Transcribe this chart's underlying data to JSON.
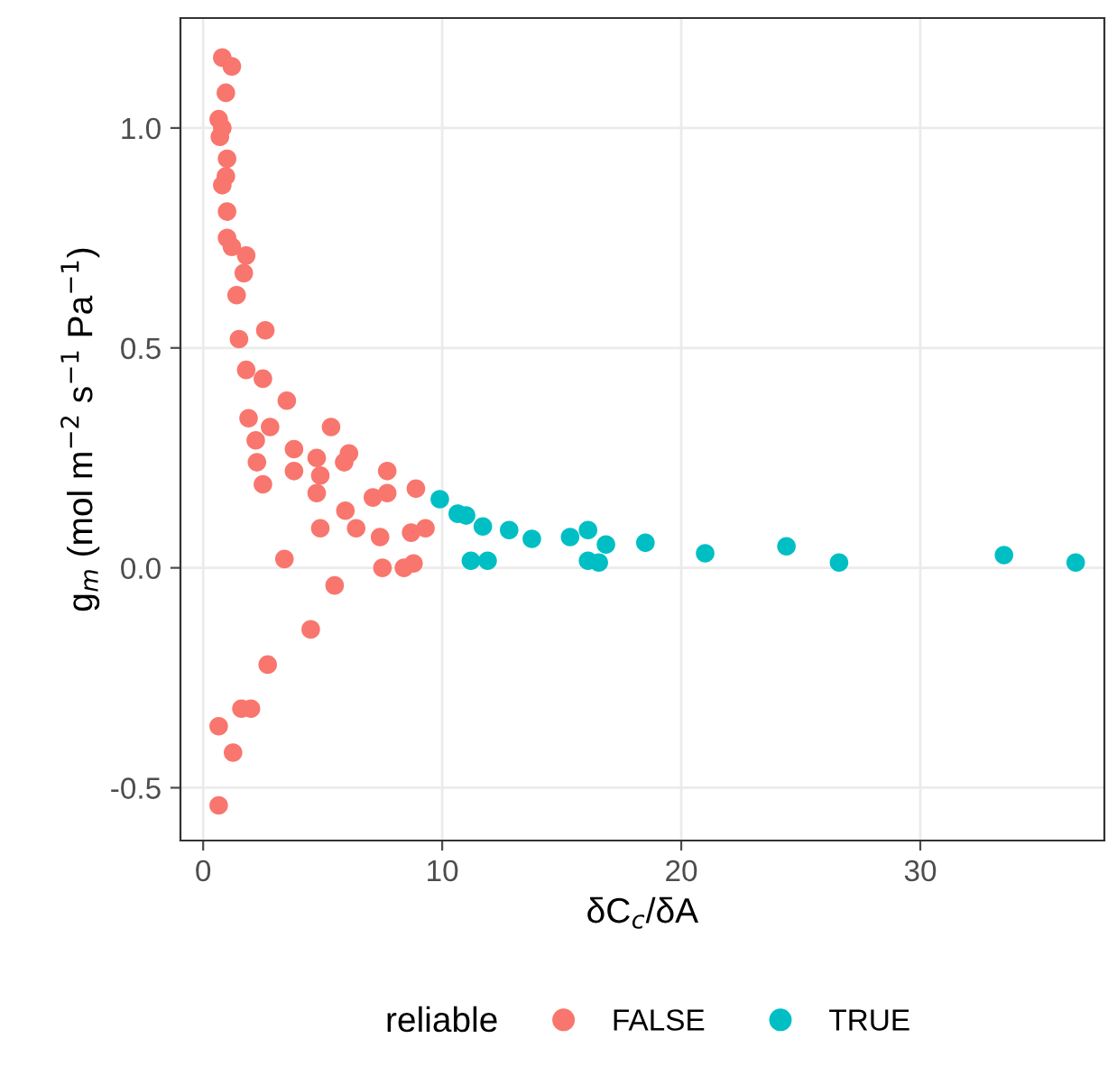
{
  "chart_data": {
    "type": "scatter",
    "xlabel": "δC$_{c}$/δA",
    "ylabel": "g$_{m}$ (mol m$^{−2}$ s$^{−1}$ Pa$^{−1}$)",
    "legend_title": "reliable",
    "xlim": [
      -0.95,
      37.7
    ],
    "ylim": [
      -0.62,
      1.25
    ],
    "xticks": [
      0,
      10,
      20,
      30
    ],
    "yticks": [
      {
        "value": -0.5,
        "label": "-0.5"
      },
      {
        "value": 0,
        "label": "0.0"
      },
      {
        "value": 0.5,
        "label": "0.5"
      },
      {
        "value": 1.0,
        "label": "1.0"
      }
    ],
    "grid": true,
    "legend": "bottom",
    "marker": "circle",
    "series": [
      {
        "name": "FALSE",
        "color": "#f8766d",
        "x": [
          0.8,
          1.2,
          0.95,
          0.65,
          0.8,
          0.7,
          1.0,
          0.95,
          0.8,
          1.0,
          1.0,
          1.2,
          1.8,
          1.7,
          1.4,
          1.5,
          2.6,
          1.8,
          2.5,
          3.5,
          1.9,
          2.8,
          5.35,
          2.2,
          2.25,
          2.5,
          3.8,
          4.75,
          3.8,
          4.9,
          4.75,
          6.1,
          5.9,
          7.7,
          8.9,
          7.1,
          7.7,
          5.95,
          6.4,
          4.9,
          7.4,
          8.7,
          9.3,
          7.5,
          8.4,
          8.8,
          3.4,
          5.5,
          4.5,
          2.7,
          1.6,
          2.0,
          0.65,
          1.25,
          0.65
        ],
        "values": [
          1.16,
          1.14,
          1.08,
          1.02,
          1.0,
          0.98,
          0.93,
          0.89,
          0.87,
          0.81,
          0.75,
          0.73,
          0.71,
          0.67,
          0.62,
          0.52,
          0.54,
          0.45,
          0.43,
          0.38,
          0.34,
          0.32,
          0.32,
          0.29,
          0.24,
          0.19,
          0.27,
          0.25,
          0.22,
          0.21,
          0.17,
          0.26,
          0.24,
          0.22,
          0.18,
          0.16,
          0.17,
          0.13,
          0.09,
          0.09,
          0.07,
          0.08,
          0.09,
          0.0,
          0.0,
          0.01,
          0.02,
          -0.04,
          -0.14,
          -0.22,
          -0.32,
          -0.32,
          -0.36,
          -0.42,
          -0.54
        ]
      },
      {
        "name": "TRUE",
        "color": "#00bfc4",
        "x": [
          9.9,
          10.65,
          11.0,
          11.7,
          12.8,
          13.75,
          15.35,
          16.1,
          16.85,
          11.2,
          11.9,
          16.1,
          16.55,
          18.5,
          21.0,
          24.4,
          26.6,
          33.5,
          36.5
        ],
        "values": [
          0.156,
          0.123,
          0.119,
          0.094,
          0.086,
          0.066,
          0.07,
          0.086,
          0.053,
          0.016,
          0.016,
          0.016,
          0.012,
          0.057,
          0.033,
          0.049,
          0.012,
          0.029,
          0.012
        ]
      }
    ]
  }
}
